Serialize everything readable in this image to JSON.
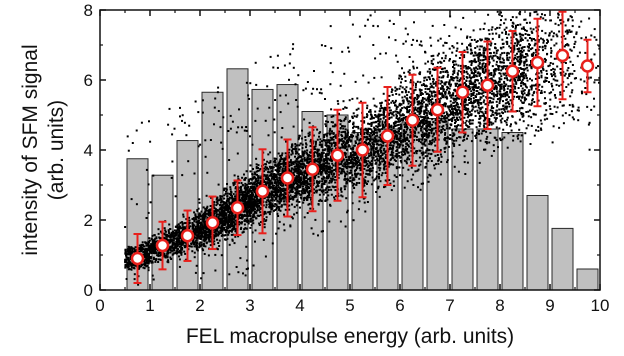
{
  "chart_data": {
    "type": "bar",
    "xlabel": "FEL macropulse energy (arb. units)",
    "ylabel_line1": "intensity of SFM signal",
    "ylabel_line2": "(arb. units)",
    "xlim": [
      0,
      10
    ],
    "ylim": [
      0,
      8
    ],
    "x_ticks": [
      "0",
      "1",
      "2",
      "3",
      "4",
      "5",
      "6",
      "7",
      "8",
      "9",
      "10"
    ],
    "y_ticks": [
      "0",
      "2",
      "4",
      "6",
      "8"
    ],
    "grid": false,
    "histogram": {
      "bin_width": 0.5,
      "color": "#c0c0c0",
      "edge_color": "#2a2a2a",
      "x": [
        0.75,
        1.25,
        1.75,
        2.25,
        2.75,
        3.25,
        3.75,
        4.25,
        4.75,
        5.25,
        5.75,
        6.25,
        6.75,
        7.25,
        7.75,
        8.25,
        8.75,
        9.25,
        9.75
      ],
      "values": [
        3.75,
        3.28,
        4.27,
        5.65,
        6.32,
        5.73,
        5.87,
        5.1,
        5.0,
        4.5,
        4.6,
        4.8,
        4.9,
        4.6,
        4.6,
        4.5,
        2.7,
        1.76,
        0.6
      ]
    },
    "mean_points": {
      "marker": "open circle",
      "color": "#e8201c",
      "x": [
        0.75,
        1.25,
        1.75,
        2.25,
        2.75,
        3.25,
        3.75,
        4.25,
        4.75,
        5.25,
        5.75,
        6.25,
        6.75,
        7.25,
        7.75,
        8.25,
        8.75,
        9.25,
        9.75
      ],
      "y": [
        0.9,
        1.27,
        1.55,
        1.92,
        2.35,
        2.82,
        3.2,
        3.45,
        3.85,
        4.0,
        4.4,
        4.85,
        5.15,
        5.65,
        5.85,
        6.25,
        6.5,
        6.7,
        6.4
      ],
      "err": [
        0.7,
        0.68,
        0.72,
        0.75,
        0.78,
        1.2,
        1.1,
        1.2,
        1.3,
        1.35,
        1.4,
        1.3,
        1.2,
        1.15,
        1.25,
        1.15,
        1.25,
        1.25,
        0.75
      ]
    },
    "scatter": {
      "color": "#000000",
      "description": "raw single-shot SFM signal vs FEL energy"
    }
  }
}
